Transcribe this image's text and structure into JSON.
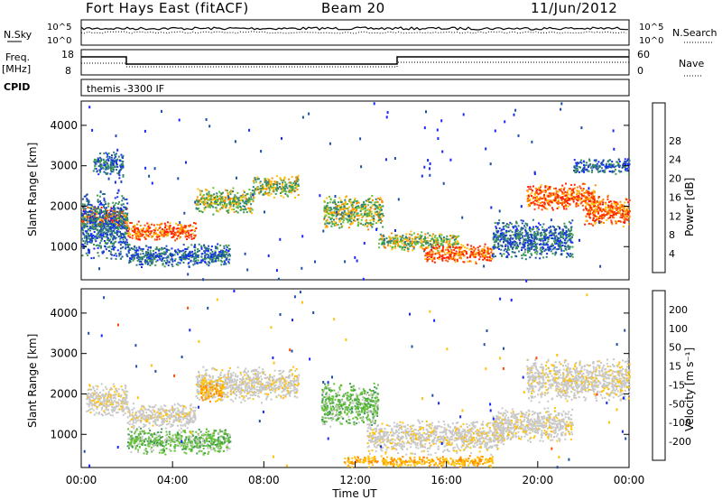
{
  "header": {
    "radar": "Fort Hays East (fitACF)",
    "beam": "Beam 20",
    "date": "11/Jun/2012"
  },
  "strips": {
    "nsky_label": "N.Sky",
    "nsky_ticks": [
      "10^5",
      "10^0"
    ],
    "nsearch_label": "N.Search",
    "nsearch_ticks": [
      "10^5",
      "10^0"
    ],
    "freq_label": "Freq.",
    "freq_unit": "[MHz]",
    "freq_ticks": [
      "18",
      "8"
    ],
    "nave_label": "Nave",
    "nave_ticks": [
      "60",
      "0"
    ],
    "cpid_label": "CPID",
    "cpid_value": "themis -3300 IF"
  },
  "chart_data": [
    {
      "type": "heatmap",
      "quantity": "Power",
      "ylabel": "Slant Range [km]",
      "yticks": [
        "1000",
        "2000",
        "3000",
        "4000"
      ],
      "ylim": [
        180,
        4600
      ],
      "xlim": [
        0,
        24
      ],
      "colorbar": {
        "label": "Power [dB]",
        "ticks": [
          "4",
          "8",
          "12",
          "16",
          "20",
          "24",
          "28"
        ],
        "colors": [
          "#1428ff",
          "#1e4fa8",
          "#2f7d7a",
          "#3f9b4f",
          "#67c23a",
          "#ffc20a",
          "#ff8a00",
          "#ff4a00",
          "#ff1e00"
        ]
      },
      "echo_bands": [
        {
          "t": [
            0.0,
            2.0
          ],
          "r": [
            1450,
            2050
          ],
          "level": "strong"
        },
        {
          "t": [
            0.0,
            2.0
          ],
          "r": [
            650,
            2400
          ],
          "level": "weak"
        },
        {
          "t": [
            0.5,
            1.8
          ],
          "r": [
            2700,
            3400
          ],
          "level": "weak"
        },
        {
          "t": [
            2.0,
            5.0
          ],
          "r": [
            1150,
            1650
          ],
          "level": "strong"
        },
        {
          "t": [
            5.0,
            7.5
          ],
          "r": [
            1800,
            2500
          ],
          "level": "medium"
        },
        {
          "t": [
            7.5,
            9.5
          ],
          "r": [
            2200,
            2800
          ],
          "level": "medium"
        },
        {
          "t": [
            2.0,
            6.5
          ],
          "r": [
            500,
            1100
          ],
          "level": "weak"
        },
        {
          "t": [
            10.6,
            13.2
          ],
          "r": [
            1400,
            2300
          ],
          "level": "medium"
        },
        {
          "t": [
            13.0,
            16.5
          ],
          "r": [
            900,
            1400
          ],
          "level": "medium"
        },
        {
          "t": [
            15.0,
            18.0
          ],
          "r": [
            600,
            1100
          ],
          "level": "strong"
        },
        {
          "t": [
            18.0,
            21.5
          ],
          "r": [
            700,
            1700
          ],
          "level": "weak"
        },
        {
          "t": [
            19.5,
            22.5
          ],
          "r": [
            1900,
            2600
          ],
          "level": "strong"
        },
        {
          "t": [
            22.0,
            24.0
          ],
          "r": [
            1500,
            2300
          ],
          "level": "strong"
        },
        {
          "t": [
            21.5,
            24.0
          ],
          "r": [
            2800,
            3200
          ],
          "level": "weak"
        }
      ]
    },
    {
      "type": "heatmap",
      "quantity": "Velocity",
      "ylabel": "Slant Range [km]",
      "yticks": [
        "1000",
        "2000",
        "3000",
        "4000"
      ],
      "ylim": [
        180,
        4600
      ],
      "xlim": [
        0,
        24
      ],
      "xticks": [
        "00:00",
        "04:00",
        "08:00",
        "12:00",
        "16:00",
        "20:00",
        "00:00"
      ],
      "xlabel": "Time UT",
      "colorbar": {
        "label": "Velocity [m s⁻¹]",
        "ticks": [
          "200",
          "100",
          "50",
          "15",
          "-15",
          "-50",
          "-100",
          "-200"
        ],
        "colors": [
          "#1428ff",
          "#1e4fa8",
          "#3f9b4f",
          "#67c23a",
          "#c8c8c8",
          "#ffc20a",
          "#ff8a00",
          "#ff4a00",
          "#ff1e00"
        ]
      },
      "echo_bands": [
        {
          "t": [
            0.2,
            2.0
          ],
          "r": [
            1400,
            2300
          ],
          "level": "ground"
        },
        {
          "t": [
            2.0,
            5.0
          ],
          "r": [
            1150,
            1800
          ],
          "level": "ground"
        },
        {
          "t": [
            5.0,
            9.5
          ],
          "r": [
            1800,
            2700
          ],
          "level": "ground"
        },
        {
          "t": [
            5.2,
            6.2
          ],
          "r": [
            1800,
            2400
          ],
          "level": "orange"
        },
        {
          "t": [
            2.0,
            6.5
          ],
          "r": [
            500,
            1200
          ],
          "level": "green"
        },
        {
          "t": [
            10.5,
            13.0
          ],
          "r": [
            1200,
            2300
          ],
          "level": "green"
        },
        {
          "t": [
            12.5,
            18.5
          ],
          "r": [
            500,
            1400
          ],
          "level": "ground"
        },
        {
          "t": [
            18.0,
            21.5
          ],
          "r": [
            800,
            1700
          ],
          "level": "ground"
        },
        {
          "t": [
            19.5,
            24.0
          ],
          "r": [
            1800,
            2900
          ],
          "level": "ground"
        },
        {
          "t": [
            11.5,
            18.0
          ],
          "r": [
            200,
            500
          ],
          "level": "orange"
        }
      ]
    }
  ]
}
